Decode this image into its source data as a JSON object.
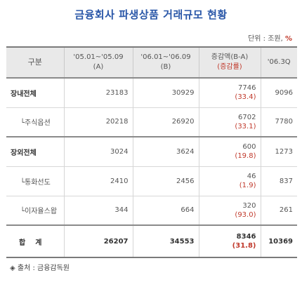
{
  "title": "금융회사 파생상품 거래규모 현황",
  "unit": {
    "prefix": "단위 : 조원, ",
    "pct": "%"
  },
  "columns": {
    "category": "구분",
    "period1_line1": "'05.01~'05.09",
    "period1_line2": "(A)",
    "period2_line1": "'06.01~'06.09",
    "period2_line2": "(B)",
    "change_line1": "증감액(B-A)",
    "change_line2": "(증감률)",
    "q3": "'06.3Q"
  },
  "rows": [
    {
      "label": "장내전체",
      "a": "23183",
      "b": "30929",
      "change": "7746",
      "rate": "(33.4)",
      "q3": "9096"
    },
    {
      "label": "└주식옵션",
      "a": "20218",
      "b": "26920",
      "change": "6702",
      "rate": "(33.1)",
      "q3": "7780"
    },
    {
      "label": "장외전체",
      "a": "3024",
      "b": "3624",
      "change": "600",
      "rate": "(19.8)",
      "q3": "1273"
    },
    {
      "label": "└통화선도",
      "a": "2410",
      "b": "2456",
      "change": "46",
      "rate": "(1.9)",
      "q3": "837"
    },
    {
      "label": "└이자율스왑",
      "a": "344",
      "b": "664",
      "change": "320",
      "rate": "(93.0)",
      "q3": "261"
    }
  ],
  "total": {
    "label": "합계",
    "a": "26207",
    "b": "34553",
    "change": "8346",
    "rate": "(31.8)",
    "q3": "10369"
  },
  "source": "◈ 출처 : 금융감독원",
  "colors": {
    "title": "#2a57a8",
    "rate": "#c0392b",
    "header_bg": "#e9e9e9"
  }
}
